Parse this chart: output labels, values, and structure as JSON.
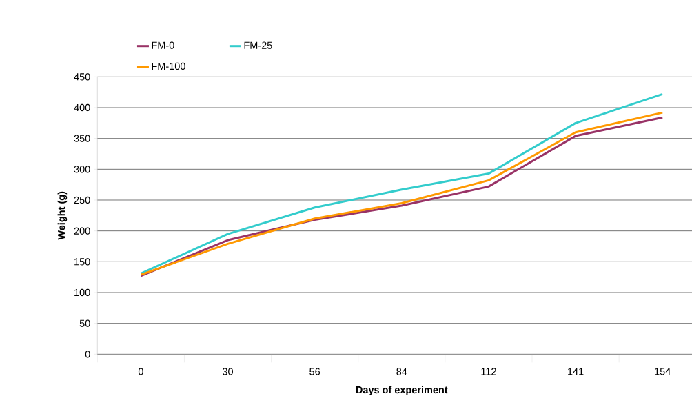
{
  "chart_data": {
    "type": "line",
    "xlabel": "Days of experiment",
    "ylabel": "Weight (g)",
    "categories": [
      "0",
      "30",
      "56",
      "84",
      "112",
      "141",
      "154"
    ],
    "series": [
      {
        "name": "FM-0",
        "color": "#993366",
        "values": [
          127,
          185,
          218,
          241,
          272,
          354,
          384
        ]
      },
      {
        "name": "FM-25",
        "color": "#33cccc",
        "values": [
          131,
          195,
          238,
          267,
          293,
          375,
          422
        ]
      },
      {
        "name": "FM-100",
        "color": "#ff9900",
        "values": [
          129,
          179,
          220,
          245,
          282,
          360,
          392
        ]
      }
    ],
    "ylim": [
      0,
      450
    ],
    "yticks": [
      0,
      50,
      100,
      150,
      200,
      250,
      300,
      350,
      400,
      450
    ],
    "grid": "y",
    "legend": "top"
  }
}
